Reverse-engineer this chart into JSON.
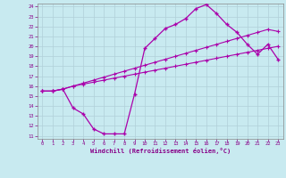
{
  "xlabel": "Windchill (Refroidissement éolien,°C)",
  "bg_color": "#c8eaf0",
  "grid_color": "#b0d0d8",
  "line_color": "#aa00aa",
  "xlim": [
    -0.5,
    23.5
  ],
  "ylim": [
    10.7,
    24.3
  ],
  "xticks": [
    0,
    1,
    2,
    3,
    4,
    5,
    6,
    7,
    8,
    9,
    10,
    11,
    12,
    13,
    14,
    15,
    16,
    17,
    18,
    19,
    20,
    21,
    22,
    23
  ],
  "yticks": [
    11,
    12,
    13,
    14,
    15,
    16,
    17,
    18,
    19,
    20,
    21,
    22,
    23,
    24
  ],
  "line1_x": [
    0,
    1,
    2,
    3,
    4,
    5,
    6,
    7,
    8,
    9,
    10,
    11,
    12,
    13,
    14,
    15,
    16,
    17,
    18,
    19,
    20,
    21,
    22,
    23
  ],
  "line1_y": [
    15.5,
    15.5,
    15.7,
    16.0,
    16.2,
    16.4,
    16.6,
    16.8,
    17.0,
    17.2,
    17.4,
    17.6,
    17.8,
    18.0,
    18.2,
    18.4,
    18.6,
    18.8,
    19.0,
    19.2,
    19.4,
    19.6,
    19.8,
    20.0
  ],
  "line2_x": [
    0,
    1,
    2,
    3,
    4,
    5,
    6,
    7,
    8,
    9,
    10,
    11,
    12,
    13,
    14,
    15,
    16,
    17,
    18,
    19,
    20,
    21,
    22,
    23
  ],
  "line2_y": [
    15.5,
    15.5,
    15.7,
    16.0,
    16.3,
    16.6,
    16.9,
    17.2,
    17.5,
    17.8,
    18.1,
    18.4,
    18.7,
    19.0,
    19.3,
    19.6,
    19.9,
    20.2,
    20.5,
    20.8,
    21.1,
    21.4,
    21.7,
    21.5
  ],
  "line3_x": [
    0,
    1,
    2,
    3,
    4,
    5,
    6,
    7,
    8,
    9,
    10,
    11,
    12,
    13,
    14,
    15,
    16,
    17,
    18,
    19,
    20,
    21,
    22,
    23
  ],
  "line3_y": [
    15.5,
    15.5,
    15.7,
    13.8,
    13.2,
    11.7,
    11.2,
    11.2,
    11.2,
    15.2,
    19.8,
    20.8,
    21.8,
    22.2,
    22.8,
    23.8,
    24.2,
    23.3,
    22.2,
    21.4,
    20.2,
    19.2,
    20.2,
    18.7
  ]
}
